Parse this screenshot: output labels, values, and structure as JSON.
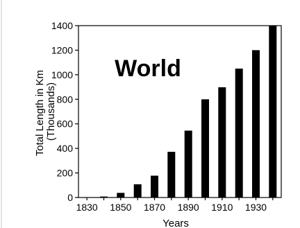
{
  "chart_data": {
    "type": "bar",
    "title": "World",
    "xlabel": "Years",
    "ylabel_lines": [
      "Total Length in Km",
      "(Thousands)"
    ],
    "categories": [
      1830,
      1840,
      1850,
      1860,
      1870,
      1880,
      1890,
      1900,
      1910,
      1920,
      1930,
      1940
    ],
    "values": [
      0,
      8,
      38,
      108,
      178,
      372,
      545,
      800,
      898,
      1050,
      1200,
      1400
    ],
    "ylim": [
      0,
      1400
    ],
    "yticks": [
      0,
      200,
      400,
      600,
      800,
      1000,
      1200,
      1400
    ],
    "xticks": [
      1830,
      1850,
      1870,
      1890,
      1910,
      1930
    ],
    "xlim": [
      1825,
      1945
    ],
    "grid": false,
    "bar_color": "#000000"
  }
}
